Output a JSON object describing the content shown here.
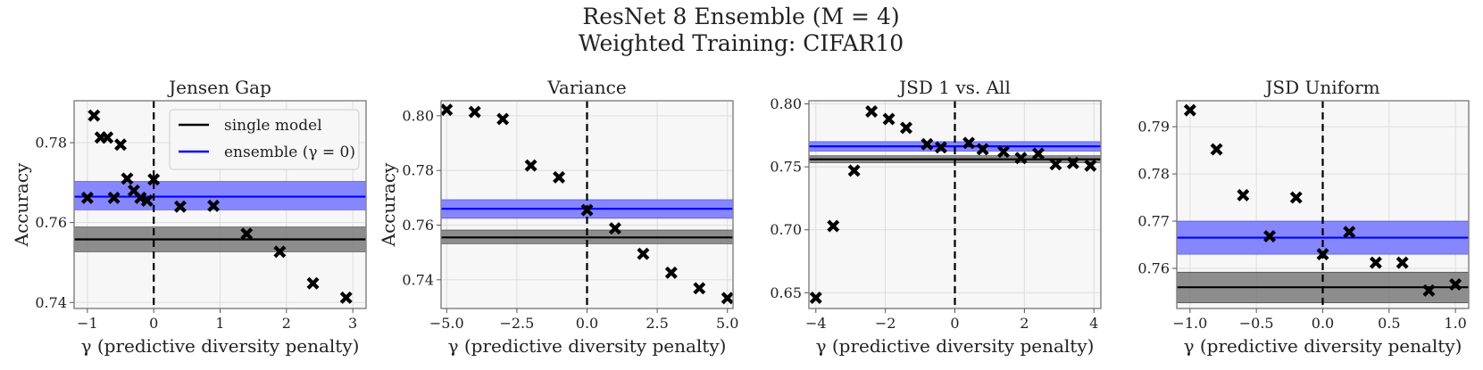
{
  "figure": {
    "title_line1": "ResNet 8 Ensemble (M = 4)",
    "title_line2": "Weighted Training: CIFAR10"
  },
  "legend": {
    "single": "single model",
    "ensemble": "ensemble (γ = 0)"
  },
  "colors": {
    "single": "#000000",
    "single_band": "#7a7a7a",
    "ensemble": "#0000ff",
    "ensemble_band": "#8080ff",
    "markers": "#000000"
  },
  "chart_data": [
    {
      "type": "scatter",
      "title": "Jensen Gap",
      "xlabel": "γ (predictive diversity penalty)",
      "ylabel": "Accuracy",
      "xlim": [
        -1.2,
        3.2
      ],
      "ylim": [
        0.7385,
        0.7905
      ],
      "xticks": [
        -1,
        0,
        1,
        2,
        3
      ],
      "xtick_labels": [
        "−1",
        "0",
        "1",
        "2",
        "3"
      ],
      "yticks": [
        0.74,
        0.76,
        0.78
      ],
      "ytick_labels": [
        "0.74",
        "0.76",
        "0.78"
      ],
      "grid": true,
      "legend_position": "top-right",
      "vline_x": 0,
      "single_model": {
        "mean": 0.7558,
        "band": [
          0.7527,
          0.7589
        ]
      },
      "ensemble": {
        "mean": 0.7665,
        "band": [
          0.7632,
          0.7703
        ]
      },
      "x": [
        -1.0,
        -0.9,
        -0.8,
        -0.7,
        -0.6,
        -0.5,
        -0.4,
        -0.3,
        -0.2,
        -0.1,
        0.0,
        0.4,
        0.9,
        1.4,
        1.9,
        2.4,
        2.9
      ],
      "y": [
        0.7662,
        0.7868,
        0.7813,
        0.7813,
        0.7662,
        0.7795,
        0.771,
        0.768,
        0.7662,
        0.7655,
        0.7708,
        0.764,
        0.7642,
        0.7572,
        0.7527,
        0.7448,
        0.7412
      ]
    },
    {
      "type": "scatter",
      "title": "Variance",
      "xlabel": "γ (predictive diversity penalty)",
      "ylabel": "Accuracy",
      "xlim": [
        -5.2,
        5.2
      ],
      "ylim": [
        0.7295,
        0.8055
      ],
      "xticks": [
        -5,
        -2.5,
        0,
        2.5,
        5
      ],
      "xtick_labels": [
        "−5.0",
        "−2.5",
        "0.0",
        "2.5",
        "5.0"
      ],
      "yticks": [
        0.74,
        0.76,
        0.78,
        0.8
      ],
      "ytick_labels": [
        "0.74",
        "0.76",
        "0.78",
        "0.80"
      ],
      "grid": true,
      "vline_x": 0,
      "single_model": {
        "mean": 0.7555,
        "band": [
          0.7532,
          0.7582
        ]
      },
      "ensemble": {
        "mean": 0.766,
        "band": [
          0.7625,
          0.7693
        ]
      },
      "x": [
        -5,
        -4,
        -3,
        -2,
        -1,
        0,
        1,
        2,
        3,
        4,
        5
      ],
      "y": [
        0.8022,
        0.8014,
        0.7988,
        0.7818,
        0.7775,
        0.7655,
        0.7588,
        0.7495,
        0.7426,
        0.7369,
        0.7333
      ]
    },
    {
      "type": "scatter",
      "title": "JSD 1 vs. All",
      "xlabel": "γ (predictive diversity penalty)",
      "ylabel": "",
      "xlim": [
        -4.2,
        4.2
      ],
      "ylim": [
        0.6375,
        0.8025
      ],
      "xticks": [
        -4,
        -2,
        0,
        2,
        4
      ],
      "xtick_labels": [
        "−4",
        "−2",
        "0",
        "2",
        "4"
      ],
      "yticks": [
        0.65,
        0.7,
        0.75,
        0.8
      ],
      "ytick_labels": [
        "0.65",
        "0.70",
        "0.75",
        "0.80"
      ],
      "grid": true,
      "vline_x": 0,
      "single_model": {
        "mean": 0.756,
        "band": [
          0.7533,
          0.7588
        ]
      },
      "ensemble": {
        "mean": 0.7663,
        "band": [
          0.7625,
          0.77
        ]
      },
      "x": [
        -4,
        -3.5,
        -2.9,
        -2.4,
        -1.9,
        -1.4,
        -0.8,
        -0.4,
        0.4,
        0.8,
        1.4,
        1.9,
        2.4,
        2.9,
        3.4,
        3.9
      ],
      "y": [
        0.646,
        0.703,
        0.747,
        0.794,
        0.788,
        0.781,
        0.768,
        0.7655,
        0.769,
        0.764,
        0.762,
        0.757,
        0.7605,
        0.752,
        0.753,
        0.751
      ]
    },
    {
      "type": "scatter",
      "title": "JSD Uniform",
      "xlabel": "γ (predictive diversity penalty)",
      "ylabel": "",
      "xlim": [
        -1.1,
        1.1
      ],
      "ylim": [
        0.7515,
        0.7955
      ],
      "xticks": [
        -1.0,
        -0.5,
        0.0,
        0.5,
        1.0
      ],
      "xtick_labels": [
        "−1.0",
        "−0.5",
        "0.0",
        "0.5",
        "1.0"
      ],
      "yticks": [
        0.76,
        0.77,
        0.78,
        0.79
      ],
      "ytick_labels": [
        "0.76",
        "0.77",
        "0.78",
        "0.79"
      ],
      "grid": true,
      "vline_x": 0,
      "single_model": {
        "mean": 0.756,
        "band": [
          0.7527,
          0.7592
        ]
      },
      "ensemble": {
        "mean": 0.7665,
        "band": [
          0.763,
          0.77
        ]
      },
      "x": [
        -1.0,
        -0.8,
        -0.6,
        -0.4,
        -0.2,
        0.0,
        0.2,
        0.4,
        0.6,
        0.8,
        1.0
      ],
      "y": [
        0.7935,
        0.7852,
        0.7755,
        0.7668,
        0.775,
        0.763,
        0.7677,
        0.7612,
        0.7612,
        0.7553,
        0.7566
      ]
    }
  ]
}
